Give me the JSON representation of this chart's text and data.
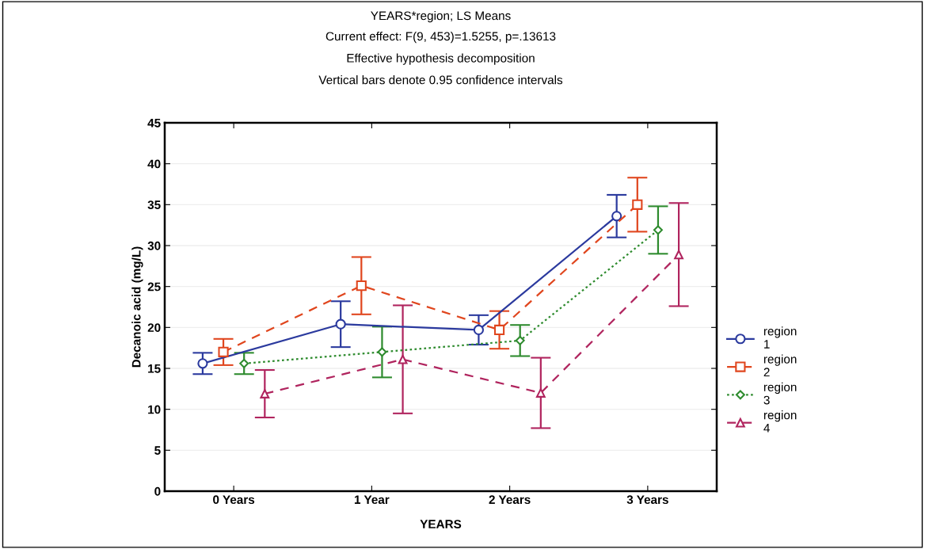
{
  "chart_data": {
    "type": "line",
    "title": "YEARS*region; LS Means",
    "subtitle": "Current effect: F(9, 453)=1.5255, p=.13613\nEffective hypothesis decomposition\nVertical bars denote 0.95 confidence intervals",
    "xlabel": "YEARS",
    "ylabel": "Decanoic acid (mg/L)",
    "categories": [
      "0 Years",
      "1 Year",
      "2 Years",
      "3 Years"
    ],
    "series": [
      {
        "name": "region\n1",
        "color": "#2b3a9e",
        "values": [
          15.6,
          20.4,
          19.7,
          33.6
        ],
        "errors": [
          1.3,
          2.8,
          1.8,
          2.6
        ],
        "marker": "circle",
        "line_style": "solid"
      },
      {
        "name": "region\n2",
        "color": "#e0461e",
        "values": [
          17.0,
          25.1,
          19.7,
          35.0
        ],
        "errors": [
          1.6,
          3.5,
          2.3,
          3.3
        ],
        "marker": "square",
        "line_style": "dashed"
      },
      {
        "name": "region\n3",
        "color": "#2e8b2e",
        "values": [
          15.6,
          17.0,
          18.4,
          31.9
        ],
        "errors": [
          1.3,
          3.1,
          1.9,
          2.9
        ],
        "marker": "diamond",
        "line_style": "dotted"
      },
      {
        "name": "region\n4",
        "color": "#b0245e",
        "values": [
          11.9,
          16.1,
          12.0,
          28.9
        ],
        "errors": [
          2.9,
          6.6,
          4.3,
          6.3
        ],
        "marker": "triangle",
        "line_style": "dashed"
      }
    ],
    "ylim": [
      0,
      45
    ],
    "yticks": [
      0,
      5,
      10,
      15,
      20,
      25,
      30,
      35,
      40,
      45
    ],
    "grid": "y",
    "legend": "right"
  }
}
